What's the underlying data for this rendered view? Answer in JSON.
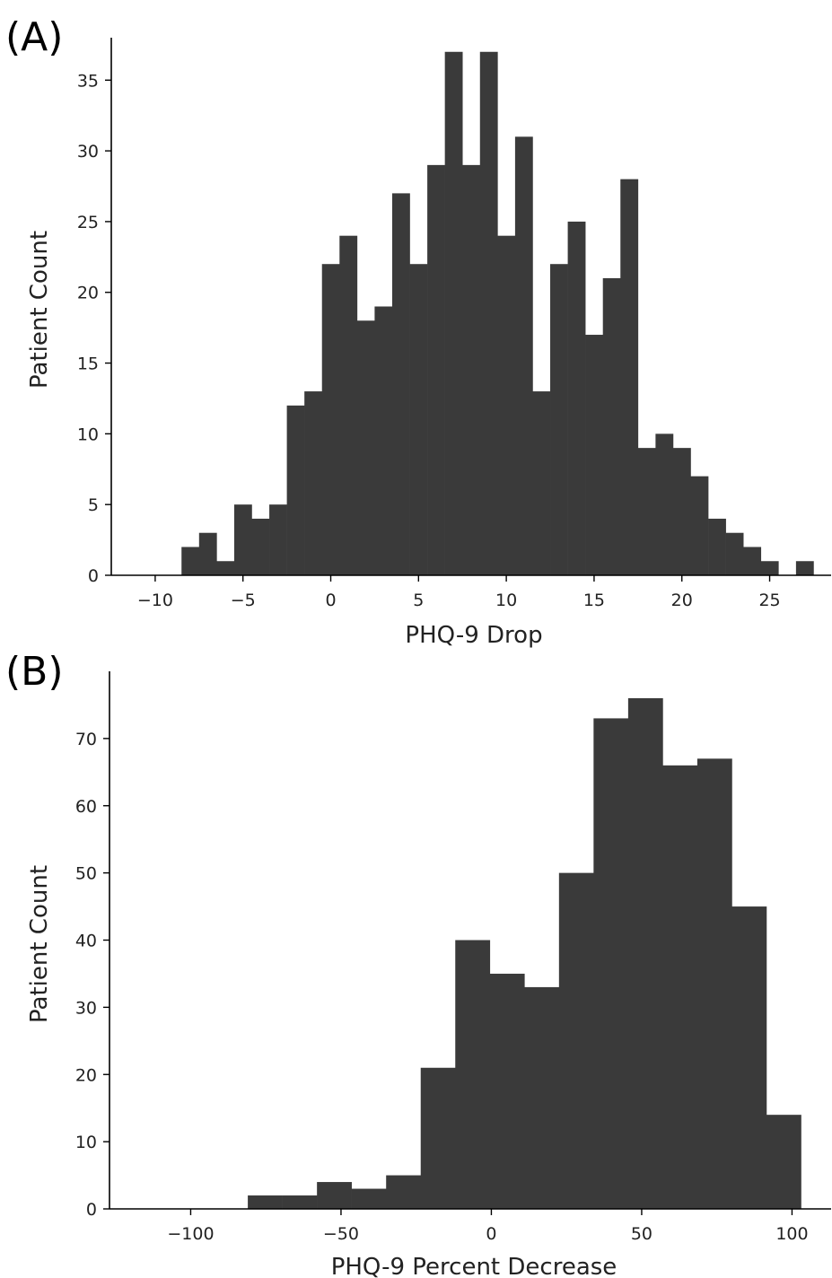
{
  "chart_data": [
    {
      "type": "bar",
      "panel_label": "(A)",
      "xlabel": "PHQ-9 Drop",
      "ylabel": "Patient Count",
      "xlim": [
        -12.5,
        28.5
      ],
      "ylim": [
        0,
        38
      ],
      "xticks": [
        -10,
        -5,
        0,
        5,
        10,
        15,
        20,
        25
      ],
      "xtick_labels": [
        "−10",
        "−5",
        "0",
        "5",
        "10",
        "15",
        "20",
        "25"
      ],
      "yticks": [
        0,
        5,
        10,
        15,
        20,
        25,
        30,
        35
      ],
      "ytick_labels": [
        "0",
        "5",
        "10",
        "15",
        "20",
        "25",
        "30",
        "35"
      ],
      "bin_start": -8.5,
      "bin_width": 1,
      "values": [
        2,
        3,
        1,
        5,
        4,
        5,
        12,
        13,
        22,
        24,
        18,
        19,
        27,
        22,
        29,
        37,
        29,
        37,
        24,
        31,
        13,
        22,
        25,
        17,
        21,
        28,
        9,
        10,
        9,
        7,
        4,
        3,
        2,
        1,
        0,
        1
      ]
    },
    {
      "type": "bar",
      "panel_label": "(B)",
      "xlabel": "PHQ-9 Percent Decrease",
      "ylabel": "Patient Count",
      "xlim": [
        -127,
        113
      ],
      "ylim": [
        0,
        80
      ],
      "xticks": [
        -100,
        -50,
        0,
        50,
        100
      ],
      "xtick_labels": [
        "−100",
        "−50",
        "0",
        "50",
        "100"
      ],
      "yticks": [
        0,
        10,
        20,
        30,
        40,
        50,
        60,
        70
      ],
      "ytick_labels": [
        "0",
        "10",
        "20",
        "30",
        "40",
        "50",
        "60",
        "70"
      ],
      "bin_start": -81,
      "bin_width": 11.5,
      "values": [
        2,
        2,
        4,
        3,
        5,
        21,
        40,
        35,
        33,
        50,
        73,
        76,
        66,
        67,
        45,
        14
      ]
    }
  ]
}
